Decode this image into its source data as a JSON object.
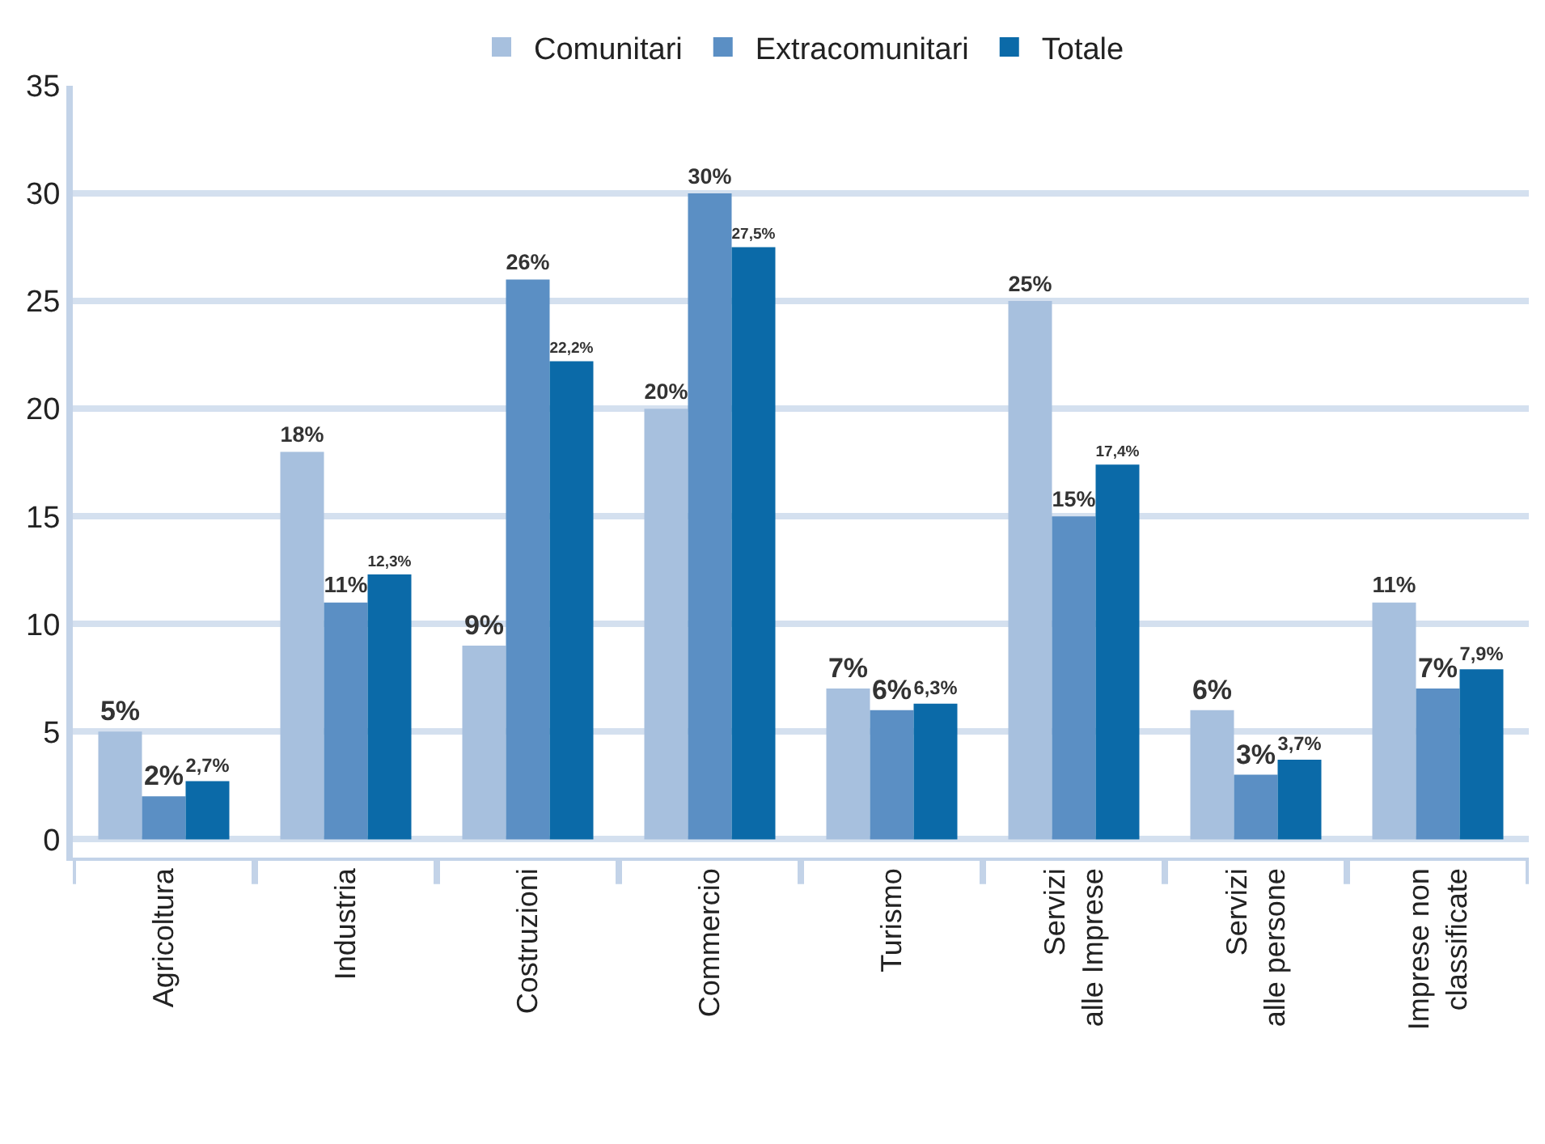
{
  "chart_data": {
    "type": "bar",
    "categories": [
      "Agricoltura",
      "Industria",
      "Costruzioni",
      "Commercio",
      "Turismo",
      "Servizi\nalle Imprese",
      "Servizi\nalle persone",
      "Imprese non\nclassificate"
    ],
    "series": [
      {
        "name": "Comunitari",
        "color": "#a7c0de",
        "values": [
          5,
          18,
          9,
          20,
          7,
          25,
          6,
          11
        ],
        "value_labels": [
          "5%",
          "18%",
          "9%",
          "20%",
          "7%",
          "25%",
          "6%",
          "11%"
        ]
      },
      {
        "name": "Extracomunitari",
        "color": "#5b8fc4",
        "values": [
          2,
          11,
          26,
          30,
          6,
          15,
          3,
          7
        ],
        "value_labels": [
          "2%",
          "11%",
          "26%",
          "30%",
          "6%",
          "15%",
          "3%",
          "7%"
        ]
      },
      {
        "name": "Totale",
        "color": "#0b6aa8",
        "values": [
          2.7,
          12.3,
          22.2,
          27.5,
          6.3,
          17.4,
          3.7,
          7.9
        ],
        "value_labels": [
          "2,7%",
          "12,3%",
          "22,2%",
          "27,5%",
          "6,3%",
          "17,4%",
          "3,7%",
          "7,9%"
        ]
      }
    ],
    "ylim": [
      -1,
      35
    ],
    "yticks": [
      0,
      5,
      10,
      15,
      20,
      25,
      30,
      35
    ],
    "grid": "y",
    "legend": "top"
  }
}
